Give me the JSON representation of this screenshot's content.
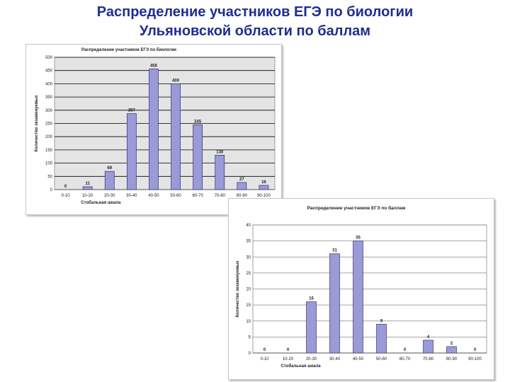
{
  "slide": {
    "title_line1": "Распределение участников ЕГЭ по биологии",
    "title_line2": "Ульяновской области по баллам"
  },
  "chart_data": [
    {
      "type": "bar",
      "title": "Распределение участников ЕГЭ по биологии",
      "xlabel": "Стобальная шкала",
      "ylabel": "Количество экзаменуемых",
      "categories": [
        "0-10",
        "10-20",
        "20-30",
        "30-40",
        "40-50",
        "50-60",
        "60-70",
        "70-80",
        "80-90",
        "90-100"
      ],
      "values": [
        0,
        11,
        69,
        287,
        456,
        400,
        245,
        130,
        27,
        16
      ],
      "ylim": [
        0,
        500
      ],
      "yticks": [
        0,
        50,
        100,
        150,
        200,
        250,
        300,
        350,
        400,
        450,
        500
      ],
      "grid": true,
      "legend": "none",
      "colors": {
        "bar": "#9a9ad8",
        "bar_edge": "#30306e",
        "plot_bg": "#e4e4e4",
        "grid": "#000000"
      }
    },
    {
      "type": "bar",
      "title": "Распределение участников ЕГЭ по баллам",
      "xlabel": "Стобальная шкала",
      "ylabel": "Количество экзаменуемых",
      "categories": [
        "0-10",
        "10-20",
        "20-30",
        "30-40",
        "40-50",
        "50-60",
        "60-70",
        "70-80",
        "80-90",
        "90-100"
      ],
      "values": [
        0,
        0,
        16,
        31,
        35,
        9,
        0,
        4,
        2,
        0
      ],
      "ylim": [
        0,
        40
      ],
      "yticks": [
        0,
        5,
        10,
        15,
        20,
        25,
        30,
        35,
        40
      ],
      "grid": true,
      "legend": "none",
      "colors": {
        "bar": "#9a9ad8",
        "bar_edge": "#30306e",
        "plot_bg": "#ffffff",
        "grid": "#888888"
      }
    }
  ]
}
